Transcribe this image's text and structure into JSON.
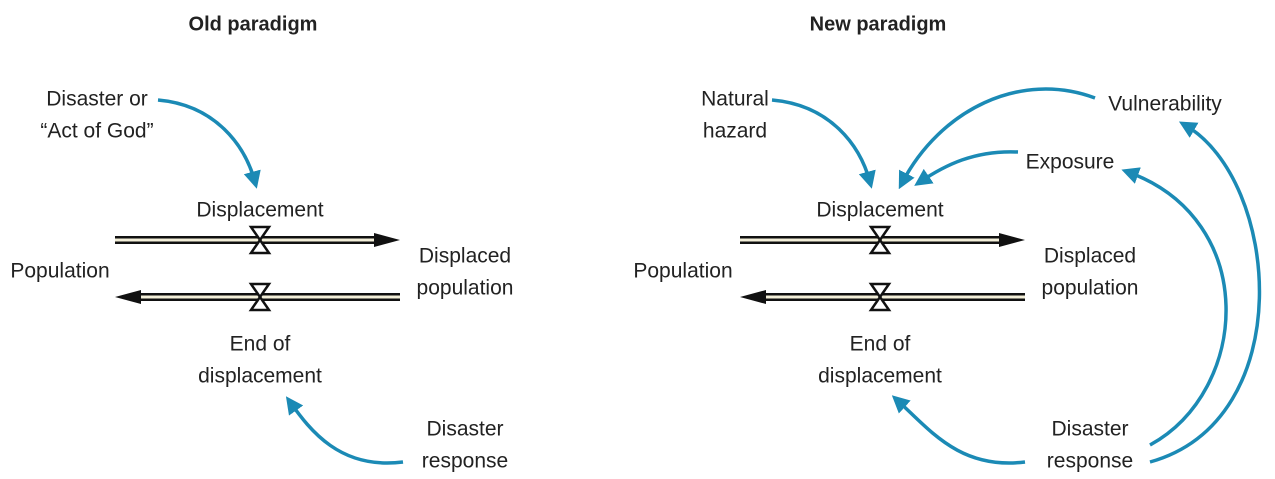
{
  "panels": [
    {
      "title": "Old paradigm",
      "nodes": [
        {
          "lines": [
            "Disaster or",
            "“Act of God”"
          ]
        },
        {
          "lines": [
            "Displacement"
          ]
        },
        {
          "lines": [
            "Population"
          ]
        },
        {
          "lines": [
            "Displaced",
            "population"
          ]
        },
        {
          "lines": [
            "End of",
            "displacement"
          ]
        },
        {
          "lines": [
            "Disaster",
            "response"
          ]
        }
      ]
    },
    {
      "title": "New paradigm",
      "nodes": [
        {
          "lines": [
            "Natural",
            "hazard"
          ]
        },
        {
          "lines": [
            "Vulnerability"
          ]
        },
        {
          "lines": [
            "Exposure"
          ]
        },
        {
          "lines": [
            "Displacement"
          ]
        },
        {
          "lines": [
            "Population"
          ]
        },
        {
          "lines": [
            "Displaced",
            "population"
          ]
        },
        {
          "lines": [
            "End of",
            "displacement"
          ]
        },
        {
          "lines": [
            "Disaster",
            "response"
          ]
        }
      ]
    }
  ]
}
